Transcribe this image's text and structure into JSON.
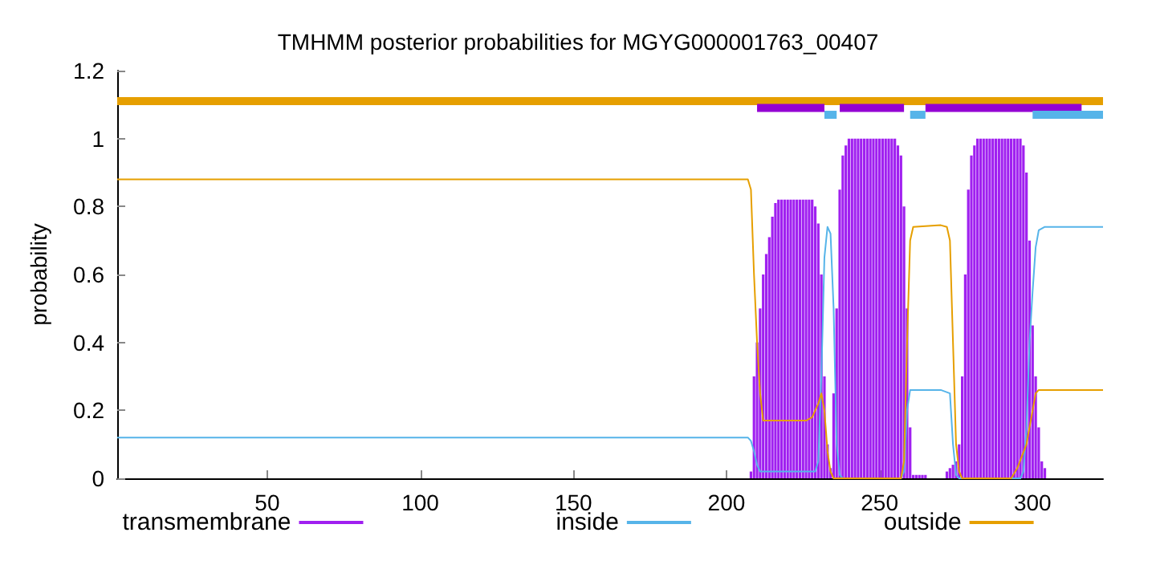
{
  "chart_data": {
    "type": "line",
    "title": "TMHMM posterior probabilities for MGYG000001763_00407",
    "ylabel": "probability",
    "xlim": [
      1,
      323
    ],
    "xticks": [
      50,
      100,
      150,
      200,
      250,
      300
    ],
    "ylim": [
      0,
      1.2
    ],
    "yticks": [
      0,
      0.2,
      0.4,
      0.6,
      0.8,
      1,
      1.2
    ],
    "grid": false,
    "legend": "bottom",
    "marker": "none",
    "line_style": "solid",
    "series": [
      {
        "name": "transmembrane",
        "type": "bar",
        "color": "#a020f0",
        "x": [
          208,
          209,
          210,
          211,
          212,
          213,
          214,
          215,
          216,
          217,
          218,
          219,
          220,
          221,
          222,
          223,
          224,
          225,
          226,
          227,
          228,
          229,
          230,
          231,
          232,
          233,
          234,
          235,
          236,
          237,
          238,
          239,
          240,
          241,
          242,
          243,
          244,
          245,
          246,
          247,
          248,
          249,
          250,
          251,
          252,
          253,
          254,
          255,
          256,
          257,
          258,
          259,
          260,
          261,
          262,
          263,
          264,
          265,
          266,
          267,
          268,
          269,
          270,
          271,
          272,
          273,
          274,
          275,
          276,
          277,
          278,
          279,
          280,
          281,
          282,
          283,
          284,
          285,
          286,
          287,
          288,
          289,
          290,
          291,
          292,
          293,
          294,
          295,
          296,
          297,
          298,
          299,
          300,
          301,
          302,
          303,
          304
        ],
        "values": [
          0.02,
          0.3,
          0.4,
          0.5,
          0.6,
          0.66,
          0.71,
          0.77,
          0.81,
          0.82,
          0.82,
          0.82,
          0.82,
          0.82,
          0.82,
          0.82,
          0.82,
          0.82,
          0.82,
          0.82,
          0.82,
          0.8,
          0.75,
          0.6,
          0.3,
          0.1,
          0.03,
          0.25,
          0.5,
          0.85,
          0.95,
          0.98,
          1,
          1,
          1,
          1,
          1,
          1,
          1,
          1,
          1,
          1,
          1,
          1,
          1,
          1,
          1,
          1,
          0.98,
          0.95,
          0.8,
          0.5,
          0.15,
          0.01,
          0.01,
          0.01,
          0.01,
          0.01,
          0,
          0,
          0,
          0,
          0,
          0,
          0.02,
          0.03,
          0.04,
          0.05,
          0.1,
          0.3,
          0.6,
          0.85,
          0.95,
          0.98,
          1,
          1,
          1,
          1,
          1,
          1,
          1,
          1,
          1,
          1,
          1,
          1,
          1,
          1,
          1,
          0.98,
          0.9,
          0.7,
          0.45,
          0.3,
          0.15,
          0.05,
          0.03
        ]
      },
      {
        "name": "inside",
        "color": "#56b4e9",
        "x": [
          1,
          207,
          208,
          209,
          210,
          211,
          229,
          230,
          231,
          232,
          233,
          234,
          235,
          236,
          237,
          238,
          257,
          258,
          259,
          260,
          270,
          273,
          274,
          275,
          276,
          296,
          297,
          298,
          299,
          300,
          301,
          302,
          304,
          323
        ],
        "values": [
          0.12,
          0.12,
          0.11,
          0.08,
          0.04,
          0.02,
          0.02,
          0.05,
          0.3,
          0.65,
          0.74,
          0.72,
          0.5,
          0.1,
          0.01,
          0,
          0,
          0.02,
          0.2,
          0.26,
          0.26,
          0.25,
          0.1,
          0.01,
          0,
          0,
          0.02,
          0.15,
          0.4,
          0.55,
          0.68,
          0.73,
          0.74,
          0.74
        ]
      },
      {
        "name": "outside",
        "color": "#e69f00",
        "x": [
          1,
          207,
          208,
          209,
          210,
          211,
          212,
          226,
          228,
          230,
          231,
          232,
          233,
          234,
          235,
          257,
          258,
          259,
          260,
          261,
          270,
          272,
          273,
          274,
          275,
          276,
          277,
          293,
          295,
          298,
          300,
          301,
          302,
          323
        ],
        "values": [
          0.88,
          0.88,
          0.85,
          0.6,
          0.4,
          0.25,
          0.17,
          0.17,
          0.18,
          0.22,
          0.25,
          0.2,
          0.08,
          0.02,
          0,
          0,
          0.05,
          0.4,
          0.7,
          0.74,
          0.745,
          0.74,
          0.7,
          0.4,
          0.1,
          0.02,
          0,
          0,
          0.03,
          0.1,
          0.2,
          0.25,
          0.26,
          0.26
        ]
      },
      {
        "color": "#e69f00",
        "x": [
          1,
          323
        ],
        "values": [
          1.11,
          1.11
        ]
      },
      {
        "color": "#9400d3",
        "x": [
          210,
          232
        ],
        "values": [
          1.09,
          1.09
        ]
      },
      {
        "color": "#9400d3",
        "x": [
          237,
          258
        ],
        "values": [
          1.09,
          1.09
        ]
      },
      {
        "color": "#9400d3",
        "x": [
          265,
          316
        ],
        "values": [
          1.09,
          1.09
        ]
      },
      {
        "color": "#56b4e9",
        "x": [
          232,
          236
        ],
        "values": [
          1.07,
          1.07
        ]
      },
      {
        "color": "#56b4e9",
        "x": [
          260,
          265
        ],
        "values": [
          1.07,
          1.07
        ]
      },
      {
        "color": "#56b4e9",
        "x": [
          300,
          323
        ],
        "values": [
          1.07,
          1.07
        ]
      }
    ]
  }
}
